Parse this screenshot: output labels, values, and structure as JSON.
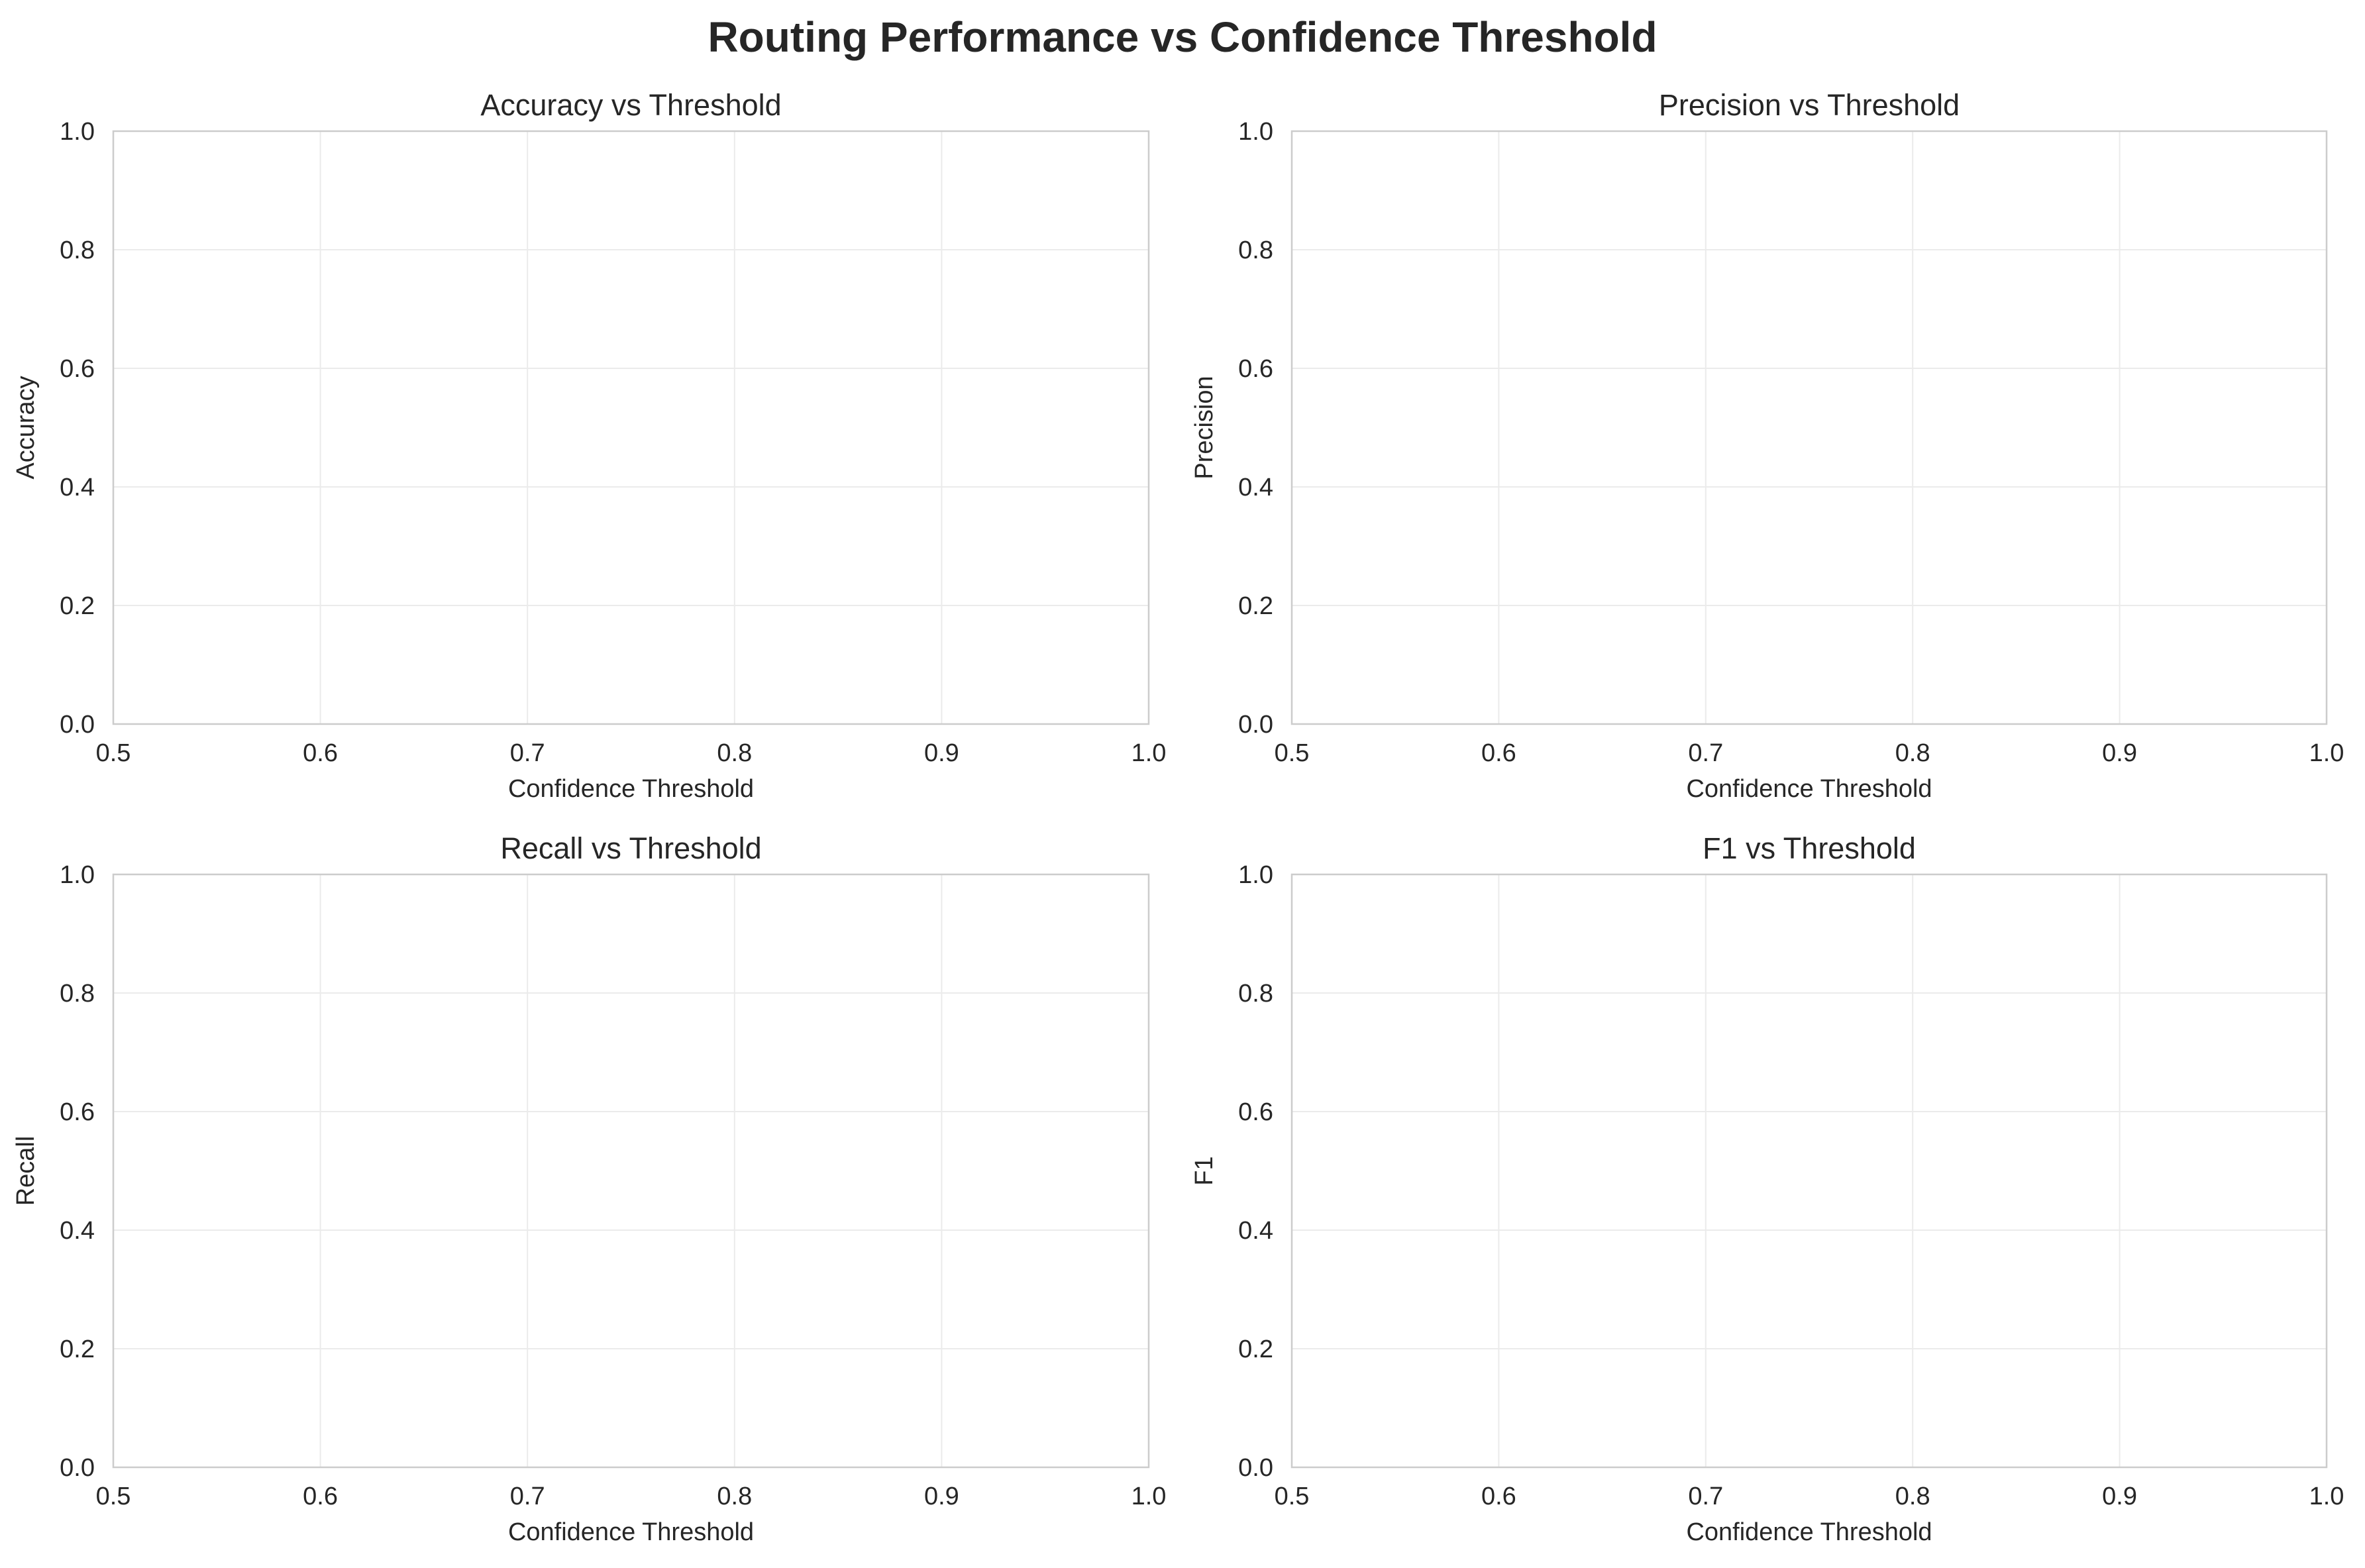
{
  "figure": {
    "title": "Routing Performance vs Confidence Threshold"
  },
  "chart_data": [
    {
      "type": "line",
      "title": "Accuracy vs Threshold",
      "xlabel": "Confidence Threshold",
      "ylabel": "Accuracy",
      "xlim": [
        0.5,
        1.0
      ],
      "ylim": [
        0.0,
        1.0
      ],
      "xticks": [
        "0.5",
        "0.6",
        "0.7",
        "0.8",
        "0.9",
        "1.0"
      ],
      "yticks": [
        "0.0",
        "0.2",
        "0.4",
        "0.6",
        "0.8",
        "1.0"
      ],
      "grid": true,
      "series": []
    },
    {
      "type": "line",
      "title": "Precision vs Threshold",
      "xlabel": "Confidence Threshold",
      "ylabel": "Precision",
      "xlim": [
        0.5,
        1.0
      ],
      "ylim": [
        0.0,
        1.0
      ],
      "xticks": [
        "0.5",
        "0.6",
        "0.7",
        "0.8",
        "0.9",
        "1.0"
      ],
      "yticks": [
        "0.0",
        "0.2",
        "0.4",
        "0.6",
        "0.8",
        "1.0"
      ],
      "grid": true,
      "series": []
    },
    {
      "type": "line",
      "title": "Recall vs Threshold",
      "xlabel": "Confidence Threshold",
      "ylabel": "Recall",
      "xlim": [
        0.5,
        1.0
      ],
      "ylim": [
        0.0,
        1.0
      ],
      "xticks": [
        "0.5",
        "0.6",
        "0.7",
        "0.8",
        "0.9",
        "1.0"
      ],
      "yticks": [
        "0.0",
        "0.2",
        "0.4",
        "0.6",
        "0.8",
        "1.0"
      ],
      "grid": true,
      "series": []
    },
    {
      "type": "line",
      "title": "F1 vs Threshold",
      "xlabel": "Confidence Threshold",
      "ylabel": "F1",
      "xlim": [
        0.5,
        1.0
      ],
      "ylim": [
        0.0,
        1.0
      ],
      "xticks": [
        "0.5",
        "0.6",
        "0.7",
        "0.8",
        "0.9",
        "1.0"
      ],
      "yticks": [
        "0.0",
        "0.2",
        "0.4",
        "0.6",
        "0.8",
        "1.0"
      ],
      "grid": true,
      "series": []
    }
  ]
}
